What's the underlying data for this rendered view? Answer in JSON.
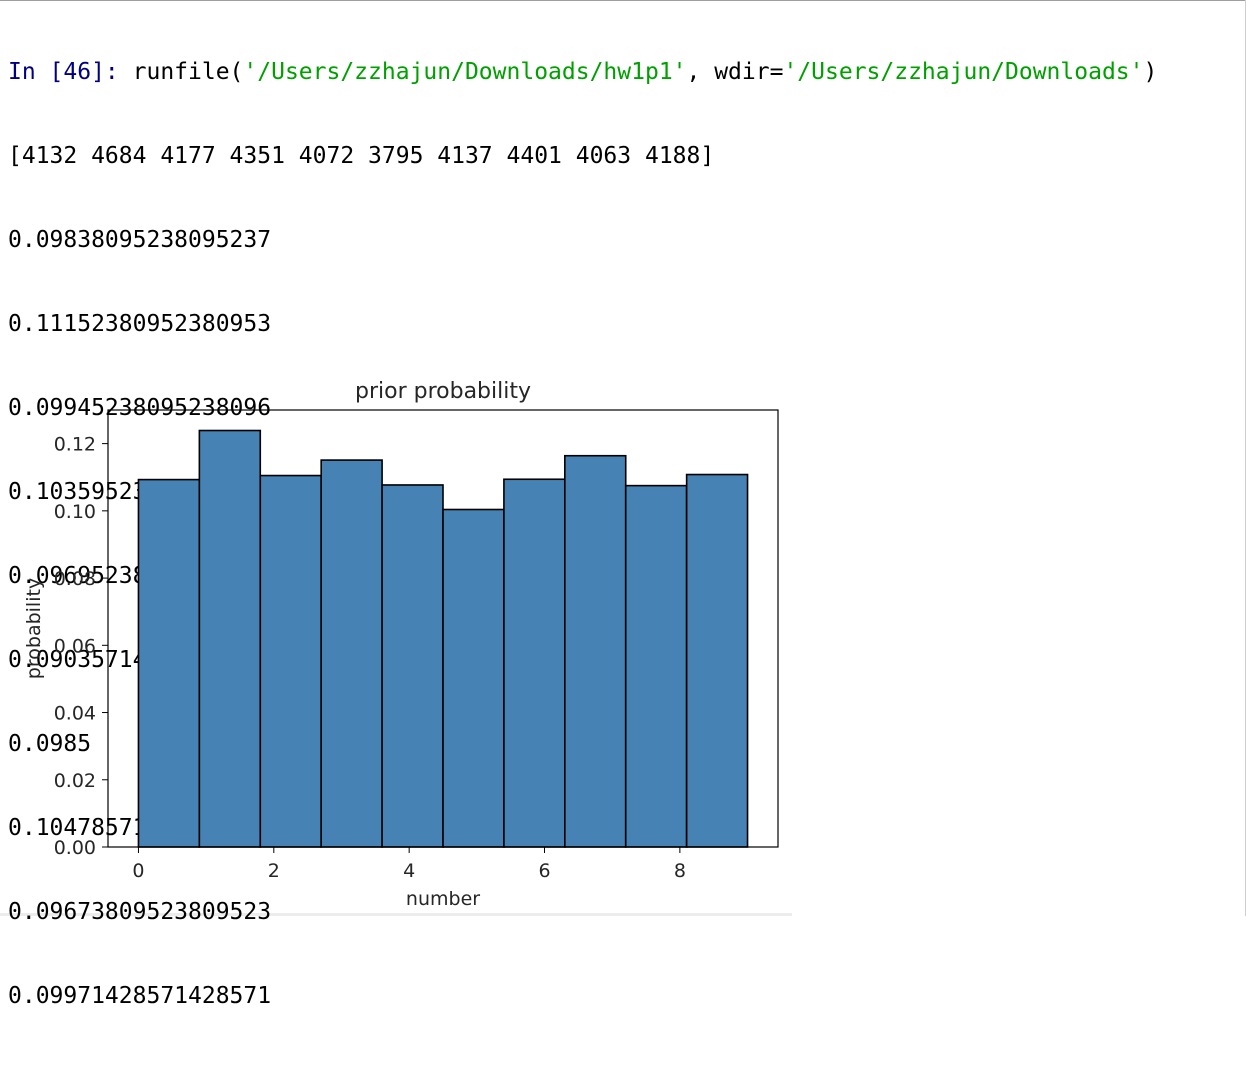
{
  "console": {
    "prompt": "In [46]:",
    "command": {
      "fn_open": " runfile(",
      "path": "'/Users/zzhajun/Downloads/hw1p1'",
      "sep": ", wdir=",
      "wdir": "'/Users/zzhajun/Downloads'",
      "close": ")"
    },
    "output_lines": [
      "[4132 4684 4177 4351 4072 3795 4137 4401 4063 4188]",
      "0.09838095238095237",
      "0.11152380952380953",
      "0.09945238095238096",
      "0.1035952380952381",
      "0.09695238095238096",
      "0.09035714285714286",
      "0.0985",
      "0.10478571428571429",
      "0.09673809523809523",
      "0.09971428571428571"
    ]
  },
  "colors": {
    "prompt": "#000080",
    "string": "#00a000",
    "bar_fill": "#4682b4",
    "bar_edge": "#000000"
  },
  "chart_data": {
    "type": "bar",
    "title": "prior probability",
    "xlabel": "number",
    "ylabel": "probability",
    "xlim": [
      -0.45,
      9.45
    ],
    "ylim": [
      0,
      0.13
    ],
    "xticks": [
      0,
      2,
      4,
      6,
      8
    ],
    "xtick_labels": [
      "0",
      "2",
      "4",
      "6",
      "8"
    ],
    "yticks": [
      0,
      0.02,
      0.04,
      0.06,
      0.08,
      0.1,
      0.12
    ],
    "ytick_labels": [
      "0.00",
      "0.02",
      "0.04",
      "0.06",
      "0.08",
      "0.10",
      "0.12"
    ],
    "bins": [
      {
        "left": 0.0,
        "right": 0.9,
        "value": 0.1093
      },
      {
        "left": 0.9,
        "right": 1.8,
        "value": 0.1239
      },
      {
        "left": 1.8,
        "right": 2.7,
        "value": 0.1105
      },
      {
        "left": 2.7,
        "right": 3.6,
        "value": 0.1151
      },
      {
        "left": 3.6,
        "right": 4.5,
        "value": 0.1077
      },
      {
        "left": 4.5,
        "right": 5.4,
        "value": 0.1004
      },
      {
        "left": 5.4,
        "right": 6.3,
        "value": 0.1094
      },
      {
        "left": 6.3,
        "right": 7.2,
        "value": 0.1164
      },
      {
        "left": 7.2,
        "right": 8.1,
        "value": 0.1075
      },
      {
        "left": 8.1,
        "right": 9.0,
        "value": 0.1108
      }
    ],
    "grid": false,
    "legend": "none"
  }
}
